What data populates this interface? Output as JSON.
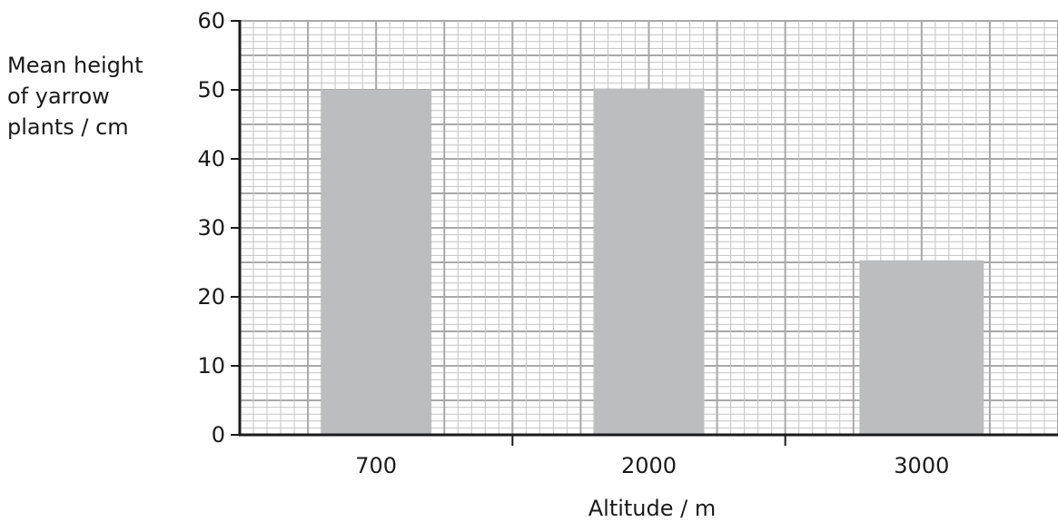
{
  "chart_data": {
    "type": "bar",
    "title": "",
    "xlabel": "Altitude / m",
    "ylabel_lines": [
      "Mean height",
      "of yarrow",
      "plants / cm"
    ],
    "categories": [
      "700",
      "2000",
      "3000"
    ],
    "values": [
      50,
      50.2,
      25.3
    ],
    "ylim": [
      0,
      60
    ],
    "yticks": [
      "0",
      "10",
      "20",
      "30",
      "40",
      "50",
      "60"
    ],
    "grid": true,
    "legend": "none",
    "colors": {
      "bar": "#bcbdc0",
      "grid_major": "#a8a8a8",
      "grid_minor": "#c4c4c4",
      "axis": "#1a1a1a"
    }
  }
}
